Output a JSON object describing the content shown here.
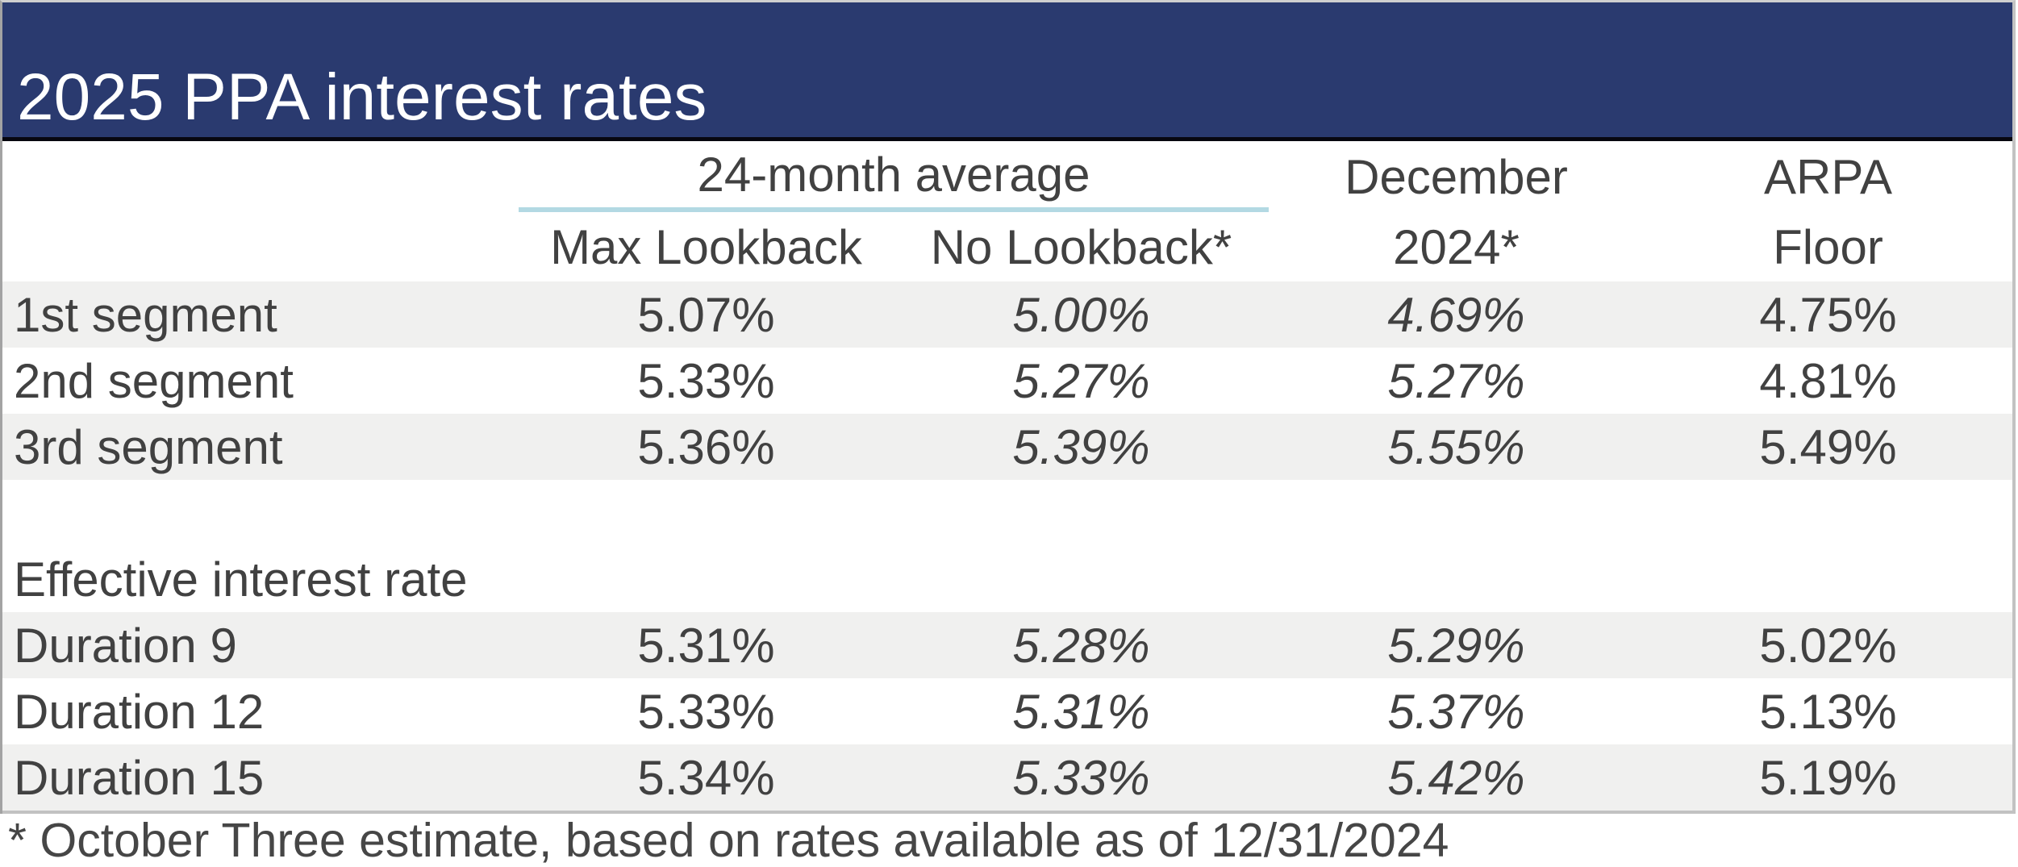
{
  "title": "2025 PPA interest rates",
  "header": {
    "group_label": "24-month average",
    "max_lookback": "Max Lookback",
    "no_lookback": "No Lookback*",
    "december_line1": "December",
    "december_line2": "2024*",
    "arpa_line1": "ARPA",
    "arpa_line2": "Floor"
  },
  "segment_rows": [
    {
      "label": "1st segment",
      "max_lookback": "5.07%",
      "no_lookback": "5.00%",
      "december": "4.69%",
      "arpa_floor": "4.75%"
    },
    {
      "label": "2nd segment",
      "max_lookback": "5.33%",
      "no_lookback": "5.27%",
      "december": "5.27%",
      "arpa_floor": "4.81%"
    },
    {
      "label": "3rd segment",
      "max_lookback": "5.36%",
      "no_lookback": "5.39%",
      "december": "5.55%",
      "arpa_floor": "5.49%"
    }
  ],
  "section_label": "Effective interest rate",
  "duration_rows": [
    {
      "label": "Duration 9",
      "max_lookback": "5.31%",
      "no_lookback": "5.28%",
      "december": "5.29%",
      "arpa_floor": "5.02%"
    },
    {
      "label": "Duration 12",
      "max_lookback": "5.33%",
      "no_lookback": "5.31%",
      "december": "5.37%",
      "arpa_floor": "5.13%"
    },
    {
      "label": "Duration 15",
      "max_lookback": "5.34%",
      "no_lookback": "5.33%",
      "december": "5.42%",
      "arpa_floor": "5.19%"
    }
  ],
  "footnote": "* October Three estimate, based on rates available as of 12/31/2024",
  "colors": {
    "title_bar": "#2a3a6f",
    "title_text": "#ffffff",
    "row_shade": "#f0f0ef",
    "body_text": "#414141",
    "group_underline": "#b3d9e3",
    "title_bottom_border": "#07070f",
    "table_border": "#c2c2c2"
  },
  "chart_data": {
    "type": "table",
    "title": "2025 PPA interest rates",
    "columns": [
      "",
      "24-month average — Max Lookback",
      "24-month average — No Lookback*",
      "December 2024*",
      "ARPA Floor"
    ],
    "rows": [
      [
        "1st segment",
        "5.07%",
        "5.00%",
        "4.69%",
        "4.75%"
      ],
      [
        "2nd segment",
        "5.33%",
        "5.27%",
        "5.27%",
        "4.81%"
      ],
      [
        "3rd segment",
        "5.36%",
        "5.39%",
        "5.55%",
        "5.49%"
      ],
      [
        "Effective interest rate",
        "",
        "",
        "",
        ""
      ],
      [
        "Duration 9",
        "5.31%",
        "5.28%",
        "5.29%",
        "5.02%"
      ],
      [
        "Duration 12",
        "5.33%",
        "5.31%",
        "5.37%",
        "5.13%"
      ],
      [
        "Duration 15",
        "5.34%",
        "5.33%",
        "5.42%",
        "5.19%"
      ]
    ],
    "footnote": "* October Three estimate, based on rates available as of 12/31/2024"
  }
}
